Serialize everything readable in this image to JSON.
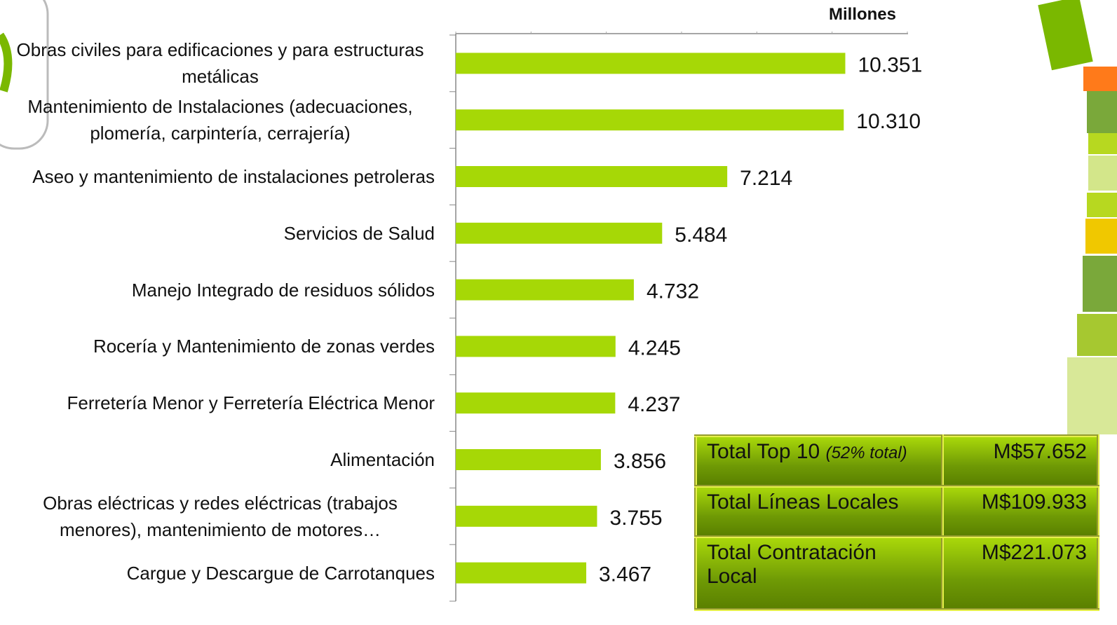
{
  "chart_data": {
    "type": "bar",
    "orientation": "horizontal",
    "axis_label": "Millones",
    "categories": [
      "Obras civiles para edificaciones y para estructuras metálicas",
      "Mantenimiento de Instalaciones (adecuaciones, plomería, carpintería, cerrajería)",
      "Aseo y mantenimiento de instalaciones petroleras",
      "Servicios de Salud",
      "Manejo Integrado de residuos sólidos",
      "Rocería y Mantenimiento de zonas verdes",
      "Ferretería Menor y Ferretería Eléctrica Menor",
      "Alimentación",
      "Obras eléctricas y redes eléctricas (trabajos menores), mantenimiento de motores…",
      "Cargue y Descargue de Carrotanques"
    ],
    "values": [
      10351,
      10310,
      7214,
      5484,
      4732,
      4245,
      4237,
      3856,
      3755,
      3467
    ],
    "value_labels": [
      "10.351",
      "10.310",
      "7.214",
      "5.484",
      "4.732",
      "4.245",
      "4.237",
      "3.856",
      "3.755",
      "3.467"
    ],
    "color": "#a6d806",
    "xlim": [
      0,
      12000
    ],
    "xticks": [
      0,
      2000,
      4000,
      6000,
      8000,
      10000,
      12000
    ]
  },
  "table": {
    "rows": [
      {
        "label": "Total Top 10",
        "note": "(52% total)",
        "value": "M$57.652"
      },
      {
        "label": "Total Líneas Locales",
        "value": "M$109.933"
      },
      {
        "label": "Total Contratación Local",
        "value": "M$221.073"
      }
    ]
  }
}
